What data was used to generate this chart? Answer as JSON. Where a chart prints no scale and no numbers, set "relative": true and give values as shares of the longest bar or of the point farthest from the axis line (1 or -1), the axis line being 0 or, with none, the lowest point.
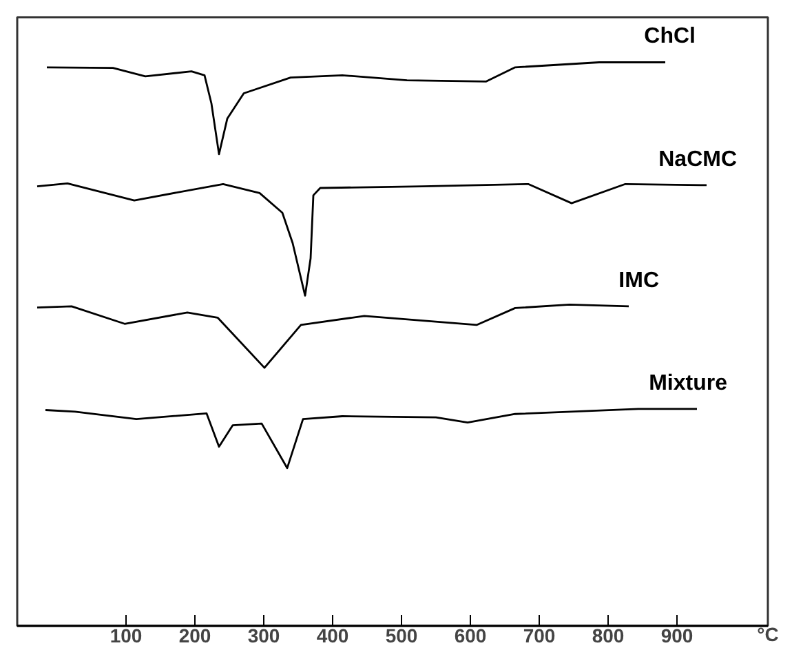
{
  "chart_data": {
    "type": "line",
    "relative": true,
    "xlabel": "°C",
    "xlim": [
      -58,
      1032
    ],
    "xticks": [
      100,
      200,
      300,
      400,
      500,
      600,
      700,
      800,
      900
    ],
    "grid": false,
    "tick_labels": "x",
    "marker": "none",
    "line_style": "solid",
    "series": [
      {
        "name": "ChCl",
        "color": "#000000",
        "x": [
          -15,
          81,
          128,
          195,
          214,
          224,
          235,
          247,
          271,
          339,
          414,
          508,
          623,
          665,
          787,
          883
        ],
        "values": [
          0.991,
          0.99,
          0.975,
          0.984,
          0.977,
          0.927,
          0.837,
          0.9,
          0.945,
          0.973,
          0.977,
          0.968,
          0.966,
          0.991,
          1.0,
          1.0
        ]
      },
      {
        "name": "NaCMC",
        "color": "#000000",
        "x": [
          -29,
          15,
          112,
          241,
          294,
          327,
          342,
          360,
          368,
          372,
          382,
          531,
          684,
          747,
          825,
          943
        ],
        "values": [
          0.78,
          0.785,
          0.755,
          0.784,
          0.768,
          0.733,
          0.679,
          0.586,
          0.652,
          0.764,
          0.777,
          0.78,
          0.784,
          0.75,
          0.784,
          0.782
        ]
      },
      {
        "name": "IMC",
        "color": "#000000",
        "x": [
          -29,
          21,
          98,
          189,
          233,
          301,
          354,
          446,
          609,
          665,
          744,
          830
        ],
        "values": [
          0.565,
          0.567,
          0.536,
          0.556,
          0.547,
          0.458,
          0.534,
          0.55,
          0.534,
          0.564,
          0.57,
          0.567
        ]
      },
      {
        "name": "Mixture",
        "color": "#000000",
        "x": [
          -17,
          26,
          115,
          217,
          235,
          255,
          297,
          334,
          357,
          414,
          550,
          596,
          665,
          844,
          929
        ],
        "values": [
          0.383,
          0.38,
          0.367,
          0.377,
          0.318,
          0.356,
          0.359,
          0.28,
          0.367,
          0.372,
          0.37,
          0.361,
          0.376,
          0.385,
          0.385
        ]
      }
    ]
  }
}
